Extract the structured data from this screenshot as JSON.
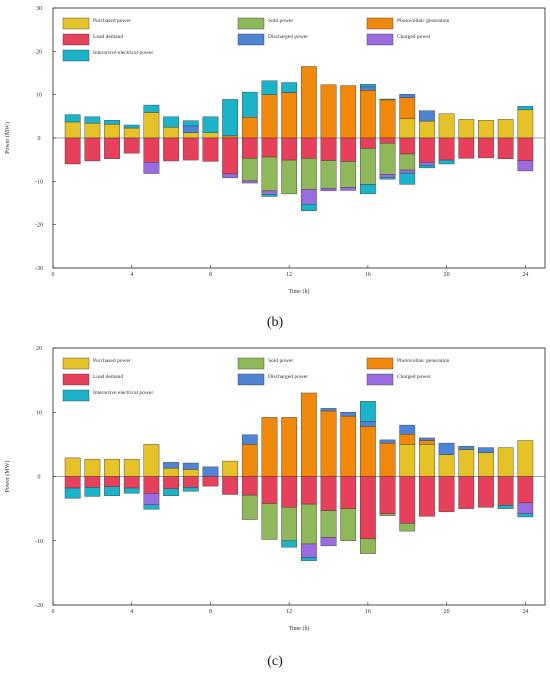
{
  "legend_items": [
    {
      "key": "purchased",
      "label": "Purchased power",
      "color": "#e6c229",
      "col": 0,
      "row": 0
    },
    {
      "key": "sold",
      "label": "Sold power",
      "color": "#8fb85a",
      "col": 1,
      "row": 0
    },
    {
      "key": "pv",
      "label": "Photovoltaic generation",
      "color": "#f0880c",
      "col": 2,
      "row": 0
    },
    {
      "key": "load",
      "label": "Load demand",
      "color": "#e6405c",
      "col": 0,
      "row": 1
    },
    {
      "key": "discharged",
      "label": "Discharged power",
      "color": "#4d84d6",
      "col": 1,
      "row": 1
    },
    {
      "key": "charged",
      "label": "Charged power",
      "color": "#9b6be0",
      "col": 2,
      "row": 1
    },
    {
      "key": "interactive",
      "label": "Interactive electrical power",
      "color": "#1ab3c9",
      "col": 0,
      "row": 2
    }
  ],
  "chart_data": [
    {
      "panel": "(b)",
      "type": "bar",
      "xlabel": "Time (h)",
      "ylabel": "Power (MW)",
      "xlim": [
        0,
        25
      ],
      "ylim": [
        -30,
        30
      ],
      "xticks": [
        0,
        4,
        8,
        12,
        16,
        20,
        24
      ],
      "yticks": [
        -30,
        -20,
        -10,
        0,
        10,
        20,
        30
      ],
      "x": [
        1,
        2,
        3,
        4,
        5,
        6,
        7,
        8,
        9,
        10,
        11,
        12,
        13,
        14,
        15,
        16,
        17,
        18,
        19,
        20,
        21,
        22,
        23,
        24
      ],
      "positive_stack": [
        "purchased",
        "pv",
        "discharged",
        "interactive"
      ],
      "negative_stack": [
        "load",
        "sold",
        "charged",
        "interactive"
      ],
      "series": {
        "purchased": [
          3.7,
          3.4,
          3.2,
          2.3,
          5.9,
          2.5,
          1.2,
          1.2,
          0,
          0,
          0,
          0,
          0,
          0,
          0,
          0,
          0,
          4.5,
          3.9,
          5.6,
          4.3,
          4.1,
          4.3,
          6.5
        ],
        "pv": [
          0,
          0,
          0,
          0,
          0,
          0,
          0,
          0,
          0.5,
          4.8,
          10,
          10.5,
          16.5,
          12.3,
          12.1,
          11,
          8.8,
          4.8,
          0,
          0,
          0,
          0,
          0,
          0
        ],
        "discharged": [
          0,
          0,
          0,
          0,
          0,
          0,
          1.6,
          0,
          0,
          0,
          0,
          0,
          0,
          0,
          0,
          0.8,
          0,
          0.8,
          2.4,
          0,
          0,
          0,
          0,
          0
        ],
        "interactive_pos": [
          1.7,
          1.5,
          0.9,
          0.7,
          1.7,
          2.4,
          1.2,
          3.7,
          8.4,
          5.8,
          3.2,
          2.3,
          0,
          0,
          0,
          0.6,
          0.2,
          0,
          0,
          0,
          0,
          0,
          0,
          0.8
        ],
        "load": [
          -6,
          -5.3,
          -4.8,
          -3.5,
          -5.6,
          -5.3,
          -5.1,
          -5.4,
          -8.3,
          -4.7,
          -4.4,
          -5.1,
          -4.7,
          -5.2,
          -5.4,
          -2.4,
          -1.2,
          -3.7,
          -5.6,
          -5.1,
          -4.7,
          -4.6,
          -4.8,
          -5.2
        ],
        "sold": [
          0,
          0,
          0,
          0,
          0,
          0,
          0,
          0,
          0,
          -5.2,
          -7.8,
          -7.8,
          -7.2,
          -6.4,
          -6,
          -8.3,
          -7.2,
          -3.7,
          0,
          0,
          0,
          0,
          0,
          0
        ],
        "charged": [
          0,
          0,
          0,
          0,
          -2.6,
          0,
          0,
          0,
          -0.9,
          -0.5,
          -0.8,
          0,
          -3.4,
          -0.6,
          -0.7,
          0,
          -0.7,
          -0.7,
          -0.7,
          0,
          0,
          0,
          0,
          -2.4
        ],
        "interactive_neg": [
          0,
          0,
          0,
          0,
          0,
          0,
          0,
          0,
          0,
          0,
          -0.5,
          0,
          -1.5,
          0,
          0,
          -2.2,
          -0.4,
          -2.6,
          -0.6,
          -0.9,
          0,
          0,
          0,
          0
        ]
      }
    },
    {
      "panel": "(c)",
      "type": "bar",
      "xlabel": "Time (h)",
      "ylabel": "Power (MW)",
      "xlim": [
        0,
        25
      ],
      "ylim": [
        -20,
        20
      ],
      "xticks": [
        0,
        4,
        8,
        12,
        16,
        20,
        24
      ],
      "yticks": [
        -20,
        -10,
        0,
        10,
        20
      ],
      "x": [
        1,
        2,
        3,
        4,
        5,
        6,
        7,
        8,
        9,
        10,
        11,
        12,
        13,
        14,
        15,
        16,
        17,
        18,
        19,
        20,
        21,
        22,
        23,
        24
      ],
      "positive_stack": [
        "purchased",
        "pv",
        "discharged",
        "interactive"
      ],
      "negative_stack": [
        "load",
        "sold",
        "charged",
        "interactive"
      ],
      "series": {
        "purchased": [
          2.9,
          2.7,
          2.7,
          2.7,
          5,
          1.3,
          1.1,
          0,
          2.4,
          0,
          0,
          0,
          0,
          0,
          0,
          0,
          0,
          5,
          5,
          3.4,
          4.2,
          3.7,
          4.5,
          5.6
        ],
        "pv": [
          0,
          0,
          0,
          0,
          0,
          0,
          0,
          0,
          0,
          5,
          9.2,
          9.2,
          13,
          10.2,
          9.4,
          7.8,
          5.2,
          1.6,
          0.6,
          0,
          0,
          0,
          0,
          0
        ],
        "discharged": [
          0,
          0,
          0,
          0,
          0,
          0.9,
          1,
          1.5,
          0,
          1.5,
          0,
          0,
          0,
          0.4,
          0.6,
          0.8,
          0.5,
          1.4,
          0.4,
          1.8,
          0.5,
          0.8,
          0,
          0
        ],
        "interactive_pos": [
          0,
          0,
          0,
          0,
          0,
          0,
          0,
          0,
          0,
          0,
          0,
          0,
          0,
          0,
          0,
          3.1,
          0,
          0,
          0,
          0,
          0,
          0,
          0,
          0
        ],
        "load": [
          -1.8,
          -1.7,
          -1.6,
          -1.8,
          -2.6,
          -1.9,
          -1.7,
          -1.5,
          -2.8,
          -2.9,
          -4.2,
          -4.8,
          -4.3,
          -5.3,
          -5,
          -9.7,
          -5.8,
          -7.3,
          -6.2,
          -5.5,
          -5,
          -4.8,
          -4.5,
          -4.1
        ],
        "sold": [
          0,
          0,
          0,
          0,
          0,
          0,
          0,
          0,
          0,
          -3.8,
          -5.6,
          -5.2,
          -6.2,
          -4.2,
          -5,
          -2.3,
          -0.3,
          -1.2,
          0,
          0,
          0,
          0,
          0,
          0
        ],
        "charged": [
          0,
          0,
          0,
          0,
          -1.8,
          0,
          0,
          0,
          0,
          0,
          0,
          0,
          -2.1,
          -1.3,
          0,
          0,
          0,
          0,
          0,
          0,
          0,
          0,
          0,
          -1.7
        ],
        "interactive_neg": [
          -1.6,
          -1.4,
          -1.4,
          -0.8,
          -0.7,
          -1.1,
          -0.6,
          0,
          0,
          0,
          0,
          -1,
          -0.5,
          0,
          0,
          0,
          0,
          0,
          0,
          0,
          0,
          0,
          -0.5,
          -0.5
        ]
      }
    }
  ]
}
